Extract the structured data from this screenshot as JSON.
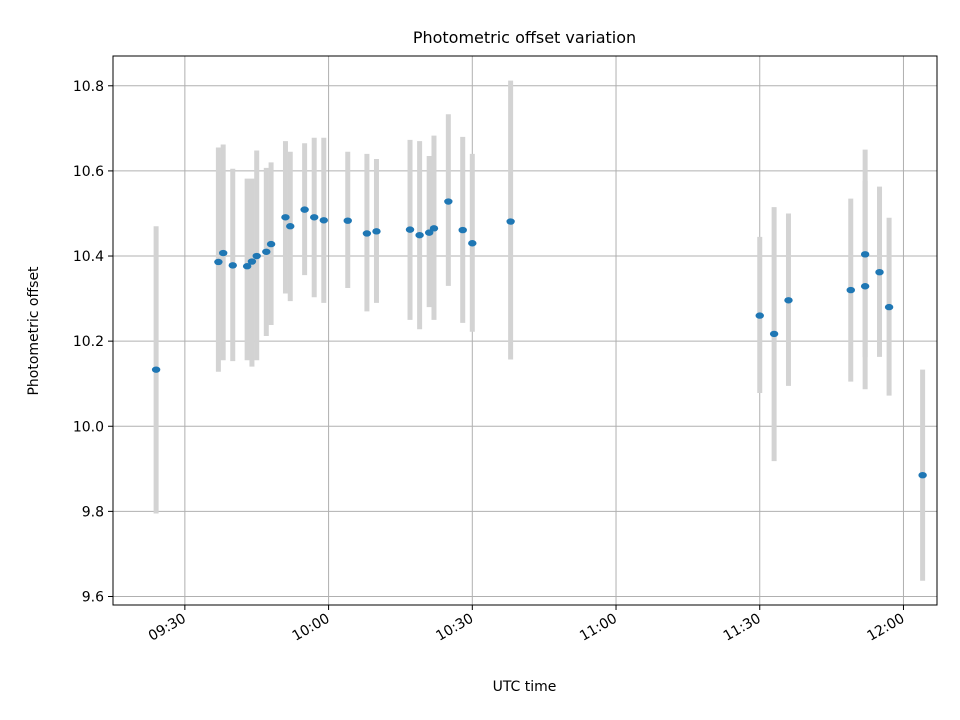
{
  "chart_data": {
    "type": "scatter",
    "title": "Photometric offset variation",
    "xlabel": "UTC time",
    "ylabel": "Photometric offset",
    "xlim": [
      "09:15",
      "12:07"
    ],
    "ylim": [
      9.58,
      10.87
    ],
    "x_ticks": [
      "09:30",
      "10:00",
      "10:30",
      "11:00",
      "11:30",
      "12:00"
    ],
    "y_ticks": [
      9.6,
      9.8,
      10.0,
      10.2,
      10.4,
      10.6,
      10.8
    ],
    "y_tick_labels": [
      "9.6",
      "9.8",
      "10.0",
      "10.2",
      "10.4",
      "10.6",
      "10.8"
    ],
    "grid": true,
    "point_color": "#1f77b4",
    "errorbar_color": "#d3d3d3",
    "points": [
      {
        "time": "09:24",
        "y": 10.133,
        "low": 9.795,
        "high": 10.47
      },
      {
        "time": "09:37",
        "y": 10.386,
        "low": 10.128,
        "high": 10.655
      },
      {
        "time": "09:38",
        "y": 10.407,
        "low": 10.155,
        "high": 10.662
      },
      {
        "time": "09:40",
        "y": 10.378,
        "low": 10.153,
        "high": 10.605
      },
      {
        "time": "09:43",
        "y": 10.376,
        "low": 10.155,
        "high": 10.582
      },
      {
        "time": "09:44",
        "y": 10.387,
        "low": 10.14,
        "high": 10.582
      },
      {
        "time": "09:45",
        "y": 10.4,
        "low": 10.155,
        "high": 10.648
      },
      {
        "time": "09:47",
        "y": 10.41,
        "low": 10.212,
        "high": 10.607
      },
      {
        "time": "09:48",
        "y": 10.428,
        "low": 10.238,
        "high": 10.62
      },
      {
        "time": "09:51",
        "y": 10.491,
        "low": 10.312,
        "high": 10.67
      },
      {
        "time": "09:52",
        "y": 10.47,
        "low": 10.294,
        "high": 10.645
      },
      {
        "time": "09:55",
        "y": 10.509,
        "low": 10.355,
        "high": 10.665
      },
      {
        "time": "09:57",
        "y": 10.491,
        "low": 10.303,
        "high": 10.678
      },
      {
        "time": "09:59",
        "y": 10.484,
        "low": 10.29,
        "high": 10.678
      },
      {
        "time": "10:04",
        "y": 10.483,
        "low": 10.325,
        "high": 10.645
      },
      {
        "time": "10:08",
        "y": 10.453,
        "low": 10.27,
        "high": 10.64
      },
      {
        "time": "10:10",
        "y": 10.458,
        "low": 10.29,
        "high": 10.628
      },
      {
        "time": "10:17",
        "y": 10.462,
        "low": 10.25,
        "high": 10.673
      },
      {
        "time": "10:19",
        "y": 10.449,
        "low": 10.228,
        "high": 10.67
      },
      {
        "time": "10:21",
        "y": 10.455,
        "low": 10.28,
        "high": 10.635
      },
      {
        "time": "10:22",
        "y": 10.465,
        "low": 10.25,
        "high": 10.683
      },
      {
        "time": "10:25",
        "y": 10.528,
        "low": 10.33,
        "high": 10.733
      },
      {
        "time": "10:28",
        "y": 10.461,
        "low": 10.243,
        "high": 10.68
      },
      {
        "time": "10:30",
        "y": 10.43,
        "low": 10.222,
        "high": 10.64
      },
      {
        "time": "10:38",
        "y": 10.481,
        "low": 10.157,
        "high": 10.812
      },
      {
        "time": "11:30",
        "y": 10.26,
        "low": 10.078,
        "high": 10.445
      },
      {
        "time": "11:33",
        "y": 10.217,
        "low": 9.918,
        "high": 10.515
      },
      {
        "time": "11:36",
        "y": 10.296,
        "low": 10.095,
        "high": 10.5
      },
      {
        "time": "11:49",
        "y": 10.32,
        "low": 10.105,
        "high": 10.535
      },
      {
        "time": "11:52",
        "y": 10.329,
        "low": 10.087,
        "high": 10.577
      },
      {
        "time": "11:52",
        "y": 10.404,
        "low": 10.162,
        "high": 10.65
      },
      {
        "time": "11:55",
        "y": 10.362,
        "low": 10.163,
        "high": 10.563
      },
      {
        "time": "11:57",
        "y": 10.28,
        "low": 10.072,
        "high": 10.49
      },
      {
        "time": "12:04",
        "y": 9.885,
        "low": 9.637,
        "high": 10.133
      }
    ]
  }
}
